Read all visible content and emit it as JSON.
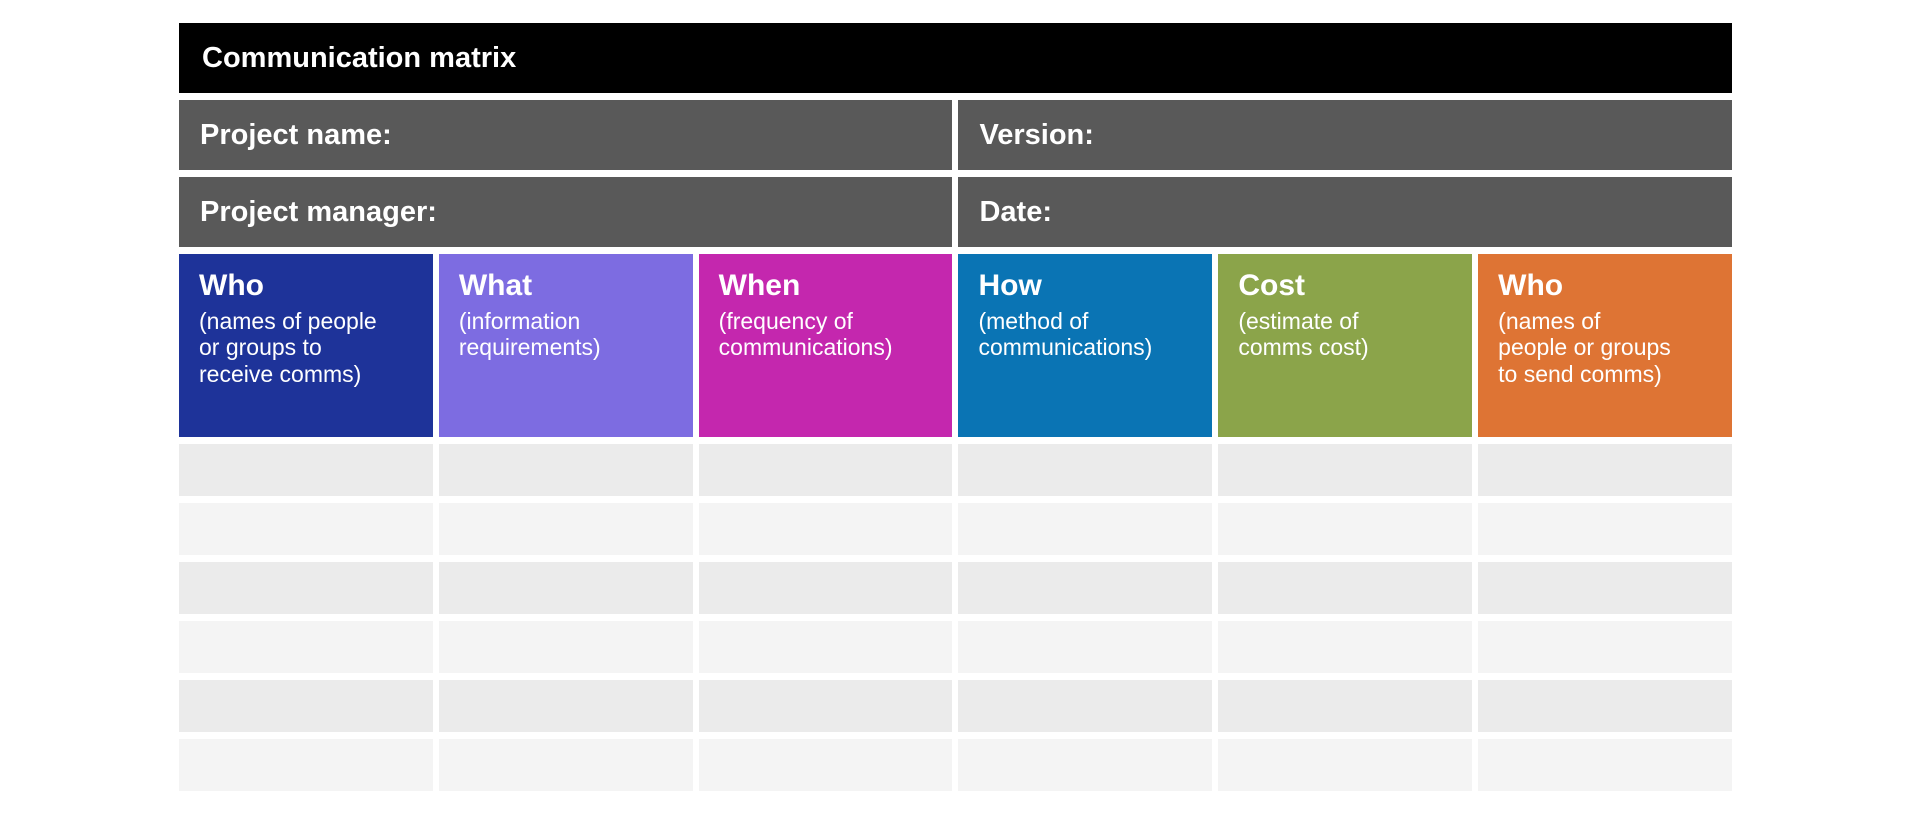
{
  "page": {
    "background_color": "#ffffff"
  },
  "table": {
    "title": "Communication matrix",
    "title_bar_color": "#000000",
    "meta_bar_color": "#595959",
    "text_color": "#ffffff",
    "meta_cells": [
      {
        "label": "Project name:"
      },
      {
        "label": "Version:"
      },
      {
        "label": "Project manager:"
      },
      {
        "label": "Date:"
      }
    ],
    "columns": [
      {
        "title": "Who",
        "subtitle": "(names of people\nor groups to\nreceive comms)",
        "color": "#1e3399"
      },
      {
        "title": "What",
        "subtitle": "(information\nrequirements)",
        "color": "#7d6ce1"
      },
      {
        "title": "When",
        "subtitle": "(frequency of\ncommunications)",
        "color": "#c427ae"
      },
      {
        "title": "How",
        "subtitle": "(method of\ncommunications)",
        "color": "#0a74b4"
      },
      {
        "title": "Cost",
        "subtitle": "(estimate of\ncomms cost)",
        "color": "#8ba44a"
      },
      {
        "title": "Who",
        "subtitle": "(names of\npeople or groups\nto send comms)",
        "color": "#de7434"
      }
    ],
    "body": {
      "row_count": 6,
      "row_colors": [
        "#ebebeb",
        "#f4f4f4"
      ]
    }
  }
}
